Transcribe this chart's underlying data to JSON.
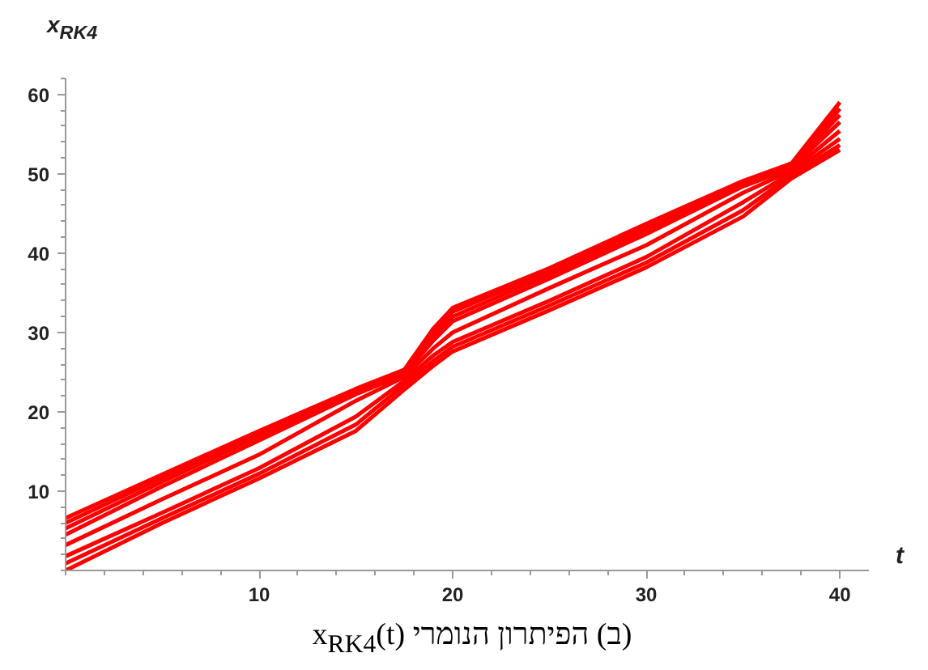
{
  "chart_data": {
    "type": "line",
    "title": "(ב) הפיתרון הנומרי x$_{RK4}$(t)",
    "xlabel": "t",
    "ylabel": "x$_{RK4}$",
    "xlim": [
      0,
      41.5
    ],
    "ylim": [
      0,
      62
    ],
    "xticks": [
      10,
      20,
      30,
      40
    ],
    "yticks": [
      10,
      20,
      30,
      40,
      50,
      60
    ],
    "grid": false,
    "line_style": "solid",
    "x": [
      0,
      5,
      10,
      15,
      17.5,
      19,
      20,
      25,
      30,
      35,
      37.5,
      40
    ],
    "series": [
      {
        "color": "#ff0000",
        "values": [
          0,
          6.0,
          11.6,
          17.6,
          22.8,
          25.8,
          27.6,
          32.8,
          38.2,
          44.6,
          49.4,
          53.0
        ]
      },
      {
        "color": "#ff0000",
        "values": [
          0.9,
          6.6,
          12.2,
          18.4,
          23.4,
          26.4,
          28.2,
          33.4,
          38.8,
          45.4,
          49.8,
          53.6
        ]
      },
      {
        "color": "#ff0000",
        "values": [
          1.8,
          7.3,
          12.9,
          19.4,
          23.9,
          27.1,
          28.8,
          34.0,
          39.5,
          46.4,
          50.1,
          54.4
        ]
      },
      {
        "color": "#ff0000",
        "values": [
          3.2,
          9.0,
          14.6,
          21.4,
          24.4,
          28.0,
          30.0,
          35.6,
          41.0,
          47.6,
          50.4,
          55.4
        ]
      },
      {
        "color": "#ff0000",
        "values": [
          4.5,
          10.6,
          16.4,
          22.2,
          24.7,
          29.0,
          31.4,
          36.8,
          42.4,
          48.4,
          50.7,
          56.5
        ]
      },
      {
        "color": "#ff0000",
        "values": [
          5.3,
          11.2,
          16.9,
          22.5,
          24.9,
          29.5,
          32.0,
          37.3,
          42.9,
          48.7,
          50.9,
          57.4
        ]
      },
      {
        "color": "#ff0000",
        "values": [
          6.0,
          11.7,
          17.3,
          22.7,
          25.1,
          30.0,
          32.6,
          37.7,
          43.3,
          48.9,
          51.1,
          58.2
        ]
      },
      {
        "color": "#ff0000",
        "values": [
          6.6,
          12.1,
          17.6,
          22.9,
          25.3,
          30.5,
          33.1,
          38.1,
          43.7,
          49.1,
          51.3,
          59.0
        ]
      }
    ]
  }
}
